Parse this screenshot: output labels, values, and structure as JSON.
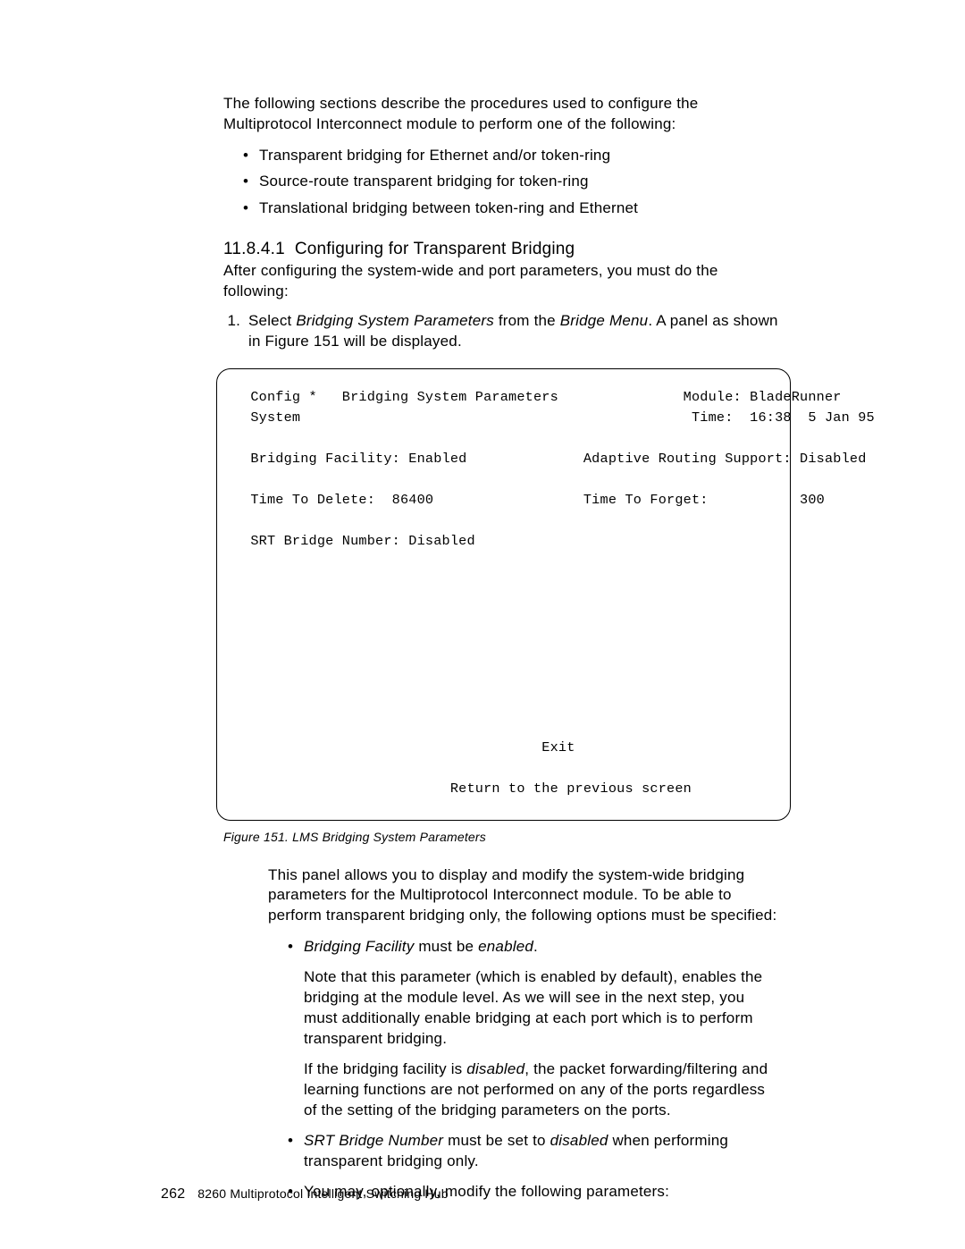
{
  "intro": "The following sections describe the procedures used to configure the Multiprotocol Interconnect module to perform one of the following:",
  "bullets_top": [
    "Transparent bridging for Ethernet and/or token-ring",
    "Source-route transparent bridging for token-ring",
    "Translational bridging between token-ring and Ethernet"
  ],
  "section_number": "11.8.4.1",
  "section_title": "Configuring for Transparent Bridging",
  "after_heading": "After configuring the system-wide and port parameters, you must do the following:",
  "step1_pre": "Select ",
  "step1_i1": "Bridging System Parameters",
  "step1_mid": " from the ",
  "step1_i2": "Bridge Menu",
  "step1_post": ".  A panel as shown in Figure  151 will be displayed.",
  "terminal": {
    "l1": " Config *   Bridging System Parameters               Module: BladeRunner",
    "l2": " System                                               Time:  16:38  5 Jan 95",
    "l3": "",
    "l4": " Bridging Facility: Enabled              Adaptive Routing Support: Disabled",
    "l5": "",
    "l6": " Time To Delete:  86400                  Time To Forget:           300",
    "l7": "",
    "l8": " SRT Bridge Number: Disabled",
    "blank9": "",
    "exit": "                                    Exit",
    "ret": "                         Return to the previous screen"
  },
  "figure_caption": "Figure  151.  LMS Bridging System Parameters",
  "panel_para": "This panel allows you to display and modify the system-wide bridging parameters for the Multiprotocol Interconnect module.  To be able to perform transparent bridging only, the following options must be specified:",
  "b1_i1": "Bridging Facility",
  "b1_mid": " must be ",
  "b1_i2": "enabled",
  "b1_post": ".",
  "b1_sub1": "Note that this parameter (which is enabled by default), enables the bridging at the module level.  As we will see in the next step, you must additionally enable bridging at each port which is to perform transparent bridging.",
  "b1_sub2_pre": "If the bridging facility is ",
  "b1_sub2_i": "disabled",
  "b1_sub2_post": ", the packet forwarding/filtering and learning functions are not performed on any of the ports regardless of the setting of the bridging parameters on the ports.",
  "b2_i1": "SRT Bridge Number",
  "b2_mid": " must be set to ",
  "b2_i2": "disabled",
  "b2_post": " when performing transparent bridging only.",
  "b3": "You may, optionally, modify the following parameters:",
  "footer_page": "262",
  "footer_text": "8260 Multiprotocol Intelligent Switching Hub"
}
